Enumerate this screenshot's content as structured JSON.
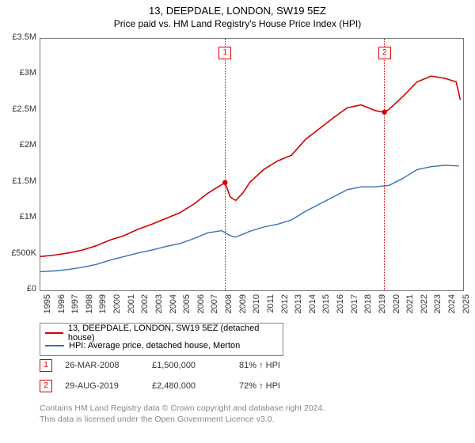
{
  "title": "13, DEEPDALE, LONDON, SW19 5EZ",
  "subtitle": "Price paid vs. HM Land Registry's House Price Index (HPI)",
  "chart": {
    "type": "line",
    "background_color": "#ffffff",
    "border_color": "#777777",
    "x": {
      "min": 1995,
      "max": 2025.3,
      "tick_step": 1,
      "ticks": [
        "1995",
        "1996",
        "1997",
        "1998",
        "1999",
        "2000",
        "2001",
        "2002",
        "2003",
        "2004",
        "2005",
        "2006",
        "2007",
        "2008",
        "2009",
        "2010",
        "2011",
        "2012",
        "2013",
        "2014",
        "2015",
        "2016",
        "2017",
        "2018",
        "2019",
        "2020",
        "2021",
        "2022",
        "2023",
        "2024",
        "2025"
      ]
    },
    "y": {
      "min": 0,
      "max": 3500000,
      "tick_step": 500000,
      "ticks": [
        "£0",
        "£500K",
        "£1M",
        "£1.5M",
        "£2M",
        "£2.5M",
        "£3M",
        "£3.5M"
      ]
    },
    "grid_color": "#cccccc",
    "series": [
      {
        "name": "13, DEEPDALE, LONDON, SW19 5EZ (detached house)",
        "color": "#d40000",
        "line_width": 1.6,
        "points": [
          [
            1995,
            470000
          ],
          [
            1996,
            490000
          ],
          [
            1997,
            520000
          ],
          [
            1998,
            560000
          ],
          [
            1999,
            620000
          ],
          [
            2000,
            700000
          ],
          [
            2001,
            760000
          ],
          [
            2002,
            850000
          ],
          [
            2003,
            920000
          ],
          [
            2004,
            1000000
          ],
          [
            2005,
            1080000
          ],
          [
            2006,
            1200000
          ],
          [
            2007,
            1350000
          ],
          [
            2008.24,
            1500000
          ],
          [
            2008.6,
            1300000
          ],
          [
            2009,
            1250000
          ],
          [
            2009.5,
            1350000
          ],
          [
            2010,
            1500000
          ],
          [
            2011,
            1680000
          ],
          [
            2012,
            1800000
          ],
          [
            2013,
            1880000
          ],
          [
            2014,
            2100000
          ],
          [
            2015,
            2250000
          ],
          [
            2016,
            2400000
          ],
          [
            2017,
            2540000
          ],
          [
            2018,
            2580000
          ],
          [
            2019,
            2500000
          ],
          [
            2019.66,
            2480000
          ],
          [
            2020,
            2520000
          ],
          [
            2021,
            2700000
          ],
          [
            2022,
            2900000
          ],
          [
            2023,
            2980000
          ],
          [
            2024,
            2950000
          ],
          [
            2024.8,
            2900000
          ],
          [
            2025.1,
            2650000
          ]
        ]
      },
      {
        "name": "HPI: Average price, detached house, Merton",
        "color": "#3b6fb6",
        "line_width": 1.4,
        "points": [
          [
            1995,
            260000
          ],
          [
            1996,
            270000
          ],
          [
            1997,
            290000
          ],
          [
            1998,
            320000
          ],
          [
            1999,
            360000
          ],
          [
            2000,
            420000
          ],
          [
            2001,
            470000
          ],
          [
            2002,
            520000
          ],
          [
            2003,
            560000
          ],
          [
            2004,
            610000
          ],
          [
            2005,
            650000
          ],
          [
            2006,
            720000
          ],
          [
            2007,
            800000
          ],
          [
            2008,
            830000
          ],
          [
            2008.6,
            760000
          ],
          [
            2009,
            740000
          ],
          [
            2010,
            820000
          ],
          [
            2011,
            880000
          ],
          [
            2012,
            920000
          ],
          [
            2013,
            980000
          ],
          [
            2014,
            1100000
          ],
          [
            2015,
            1200000
          ],
          [
            2016,
            1300000
          ],
          [
            2017,
            1400000
          ],
          [
            2018,
            1440000
          ],
          [
            2019,
            1440000
          ],
          [
            2020,
            1460000
          ],
          [
            2021,
            1560000
          ],
          [
            2022,
            1680000
          ],
          [
            2023,
            1720000
          ],
          [
            2024,
            1740000
          ],
          [
            2025,
            1730000
          ]
        ]
      }
    ],
    "markers": [
      {
        "label": "1",
        "x": 2008.24,
        "y": 1500000,
        "box_top_y": 3300000
      },
      {
        "label": "2",
        "x": 2019.66,
        "y": 2480000,
        "box_top_y": 3300000
      }
    ]
  },
  "legend": {
    "rows": [
      {
        "color": "#d40000",
        "label": "13, DEEPDALE, LONDON, SW19 5EZ (detached house)"
      },
      {
        "color": "#3b6fb6",
        "label": "HPI: Average price, detached house, Merton"
      }
    ]
  },
  "sales": [
    {
      "marker": "1",
      "date": "26-MAR-2008",
      "price": "£1,500,000",
      "pct": "81% ↑ HPI"
    },
    {
      "marker": "2",
      "date": "29-AUG-2019",
      "price": "£2,480,000",
      "pct": "72% ↑ HPI"
    }
  ],
  "footer": {
    "line1": "Contains HM Land Registry data © Crown copyright and database right 2024.",
    "line2": "This data is licensed under the Open Government Licence v3.0."
  },
  "label_fontsize": 11
}
